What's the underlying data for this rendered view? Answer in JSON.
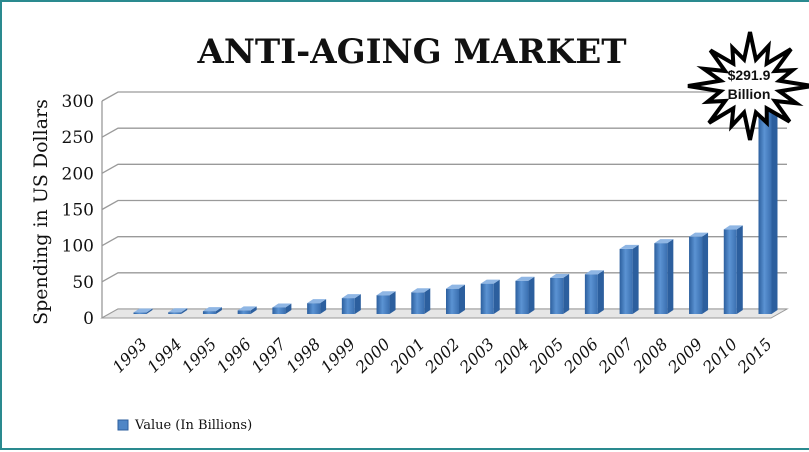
{
  "chart_data": {
    "type": "bar",
    "title": "ANTI-AGING MARKET",
    "ylabel": "Spending in US Dollars",
    "xlabel": "",
    "ylim": [
      0,
      300
    ],
    "yticks": [
      "0",
      "50",
      "100",
      "150",
      "200",
      "250",
      "300"
    ],
    "grid": true,
    "categories": [
      "1993",
      "1994",
      "1995",
      "1996",
      "1997",
      "1998",
      "1999",
      "2000",
      "2001",
      "2002",
      "2003",
      "2004",
      "2005",
      "2006",
      "2007",
      "2008",
      "2009",
      "2010",
      "2015"
    ],
    "series": [
      {
        "name": "Value (In Billions)",
        "values": [
          2,
          2.5,
          4,
          5,
          9,
          15,
          22,
          26,
          30,
          35,
          42,
          46,
          50,
          55,
          90,
          98,
          107,
          117,
          291.9
        ]
      }
    ],
    "legend_position": "bottom-left",
    "annotation": {
      "line1": "$291.9",
      "line2": "Billion"
    },
    "colors": {
      "bar": "#4f86c6",
      "bar_dark": "#2c5f9e",
      "bar_light": "#8fb6e4",
      "grid": "#9a9a9a",
      "frame": "#2a8a8f"
    }
  }
}
